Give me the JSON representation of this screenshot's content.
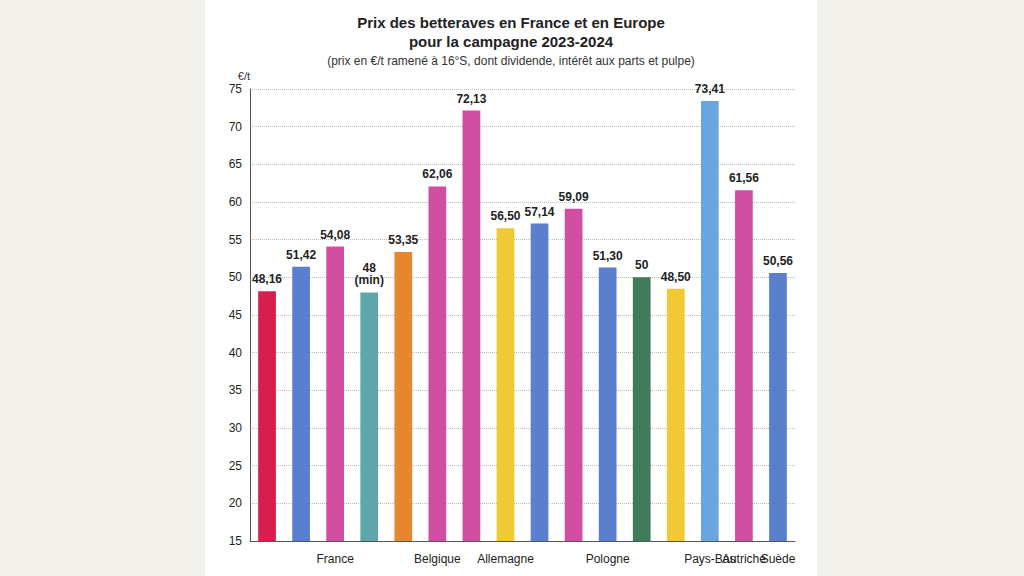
{
  "chart_data": {
    "type": "bar",
    "title": "Prix des betteraves en France et en Europe\npour la campagne 2023-2024",
    "subtitle": "(prix en €/t ramené à 16°S, dont dividende, intérêt aux parts et pulpe)",
    "y_label": "€/t",
    "categories": [
      null,
      null,
      "France",
      null,
      null,
      "Belgique",
      null,
      "Allemagne",
      null,
      null,
      "Pologne",
      null,
      null,
      "Pays-Bas",
      "Autriche",
      "Suède"
    ],
    "values": [
      48.16,
      51.42,
      54.08,
      48,
      53.35,
      62.06,
      72.13,
      56.5,
      57.14,
      59.09,
      51.3,
      50,
      48.5,
      73.41,
      61.56,
      50.56
    ],
    "value_labels": [
      "48,16",
      "51,42",
      "54,08",
      "48 (min)",
      "53,35",
      "62,06",
      "72,13",
      "56,50",
      "57,14",
      "59,09",
      "51,30",
      "50",
      "48,50",
      "73,41",
      "61,56",
      "50,56"
    ],
    "colors": [
      "#d61f4f",
      "#5a7fcf",
      "#d14fa3",
      "#5fa6ab",
      "#e5872f",
      "#d14fa3",
      "#d14fa3",
      "#f0c935",
      "#5a7fcf",
      "#d14fa3",
      "#5a7fcf",
      "#3e7c5a",
      "#f0c935",
      "#6aa5de",
      "#d14fa3",
      "#5a7fcf"
    ],
    "ylim": [
      15,
      75
    ],
    "yticks": [
      15,
      20,
      25,
      30,
      35,
      40,
      45,
      50,
      55,
      60,
      65,
      70,
      75
    ],
    "grid": true,
    "data_labels": true
  }
}
